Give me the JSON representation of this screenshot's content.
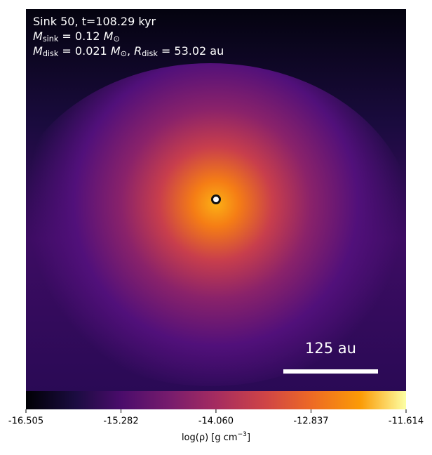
{
  "chart_data": {
    "type": "image",
    "annotation_lines": [
      [
        {
          "text": "Sink 50, t=108.29 kyr"
        }
      ],
      [
        {
          "text": "M",
          "sub": "sink",
          "italic": true
        },
        {
          "text": " = 0.12 "
        },
        {
          "text": "M",
          "sub": "⊙",
          "italic": true
        }
      ],
      [
        {
          "text": "M",
          "sub": "disk",
          "italic": true
        },
        {
          "text": " = 0.021 "
        },
        {
          "text": "M",
          "sub": "⊙",
          "italic": true
        },
        {
          "text": ", "
        },
        {
          "text": "R",
          "sub": "disk",
          "italic": true
        },
        {
          "text": " = 53.02 au"
        }
      ]
    ],
    "scalebar": {
      "value": 125,
      "label": "125 au"
    },
    "colorbar": {
      "clim": [
        -16.505,
        -11.614
      ],
      "ticks": [
        -16.505,
        -15.282,
        {
          "value": -14.06,
          "label": "-14.060"
        },
        -12.837,
        -11.614
      ],
      "label": [
        {
          "text": "log(ρ) [g cm"
        },
        {
          "sup": "−3"
        },
        {
          "text": "]"
        }
      ]
    }
  }
}
